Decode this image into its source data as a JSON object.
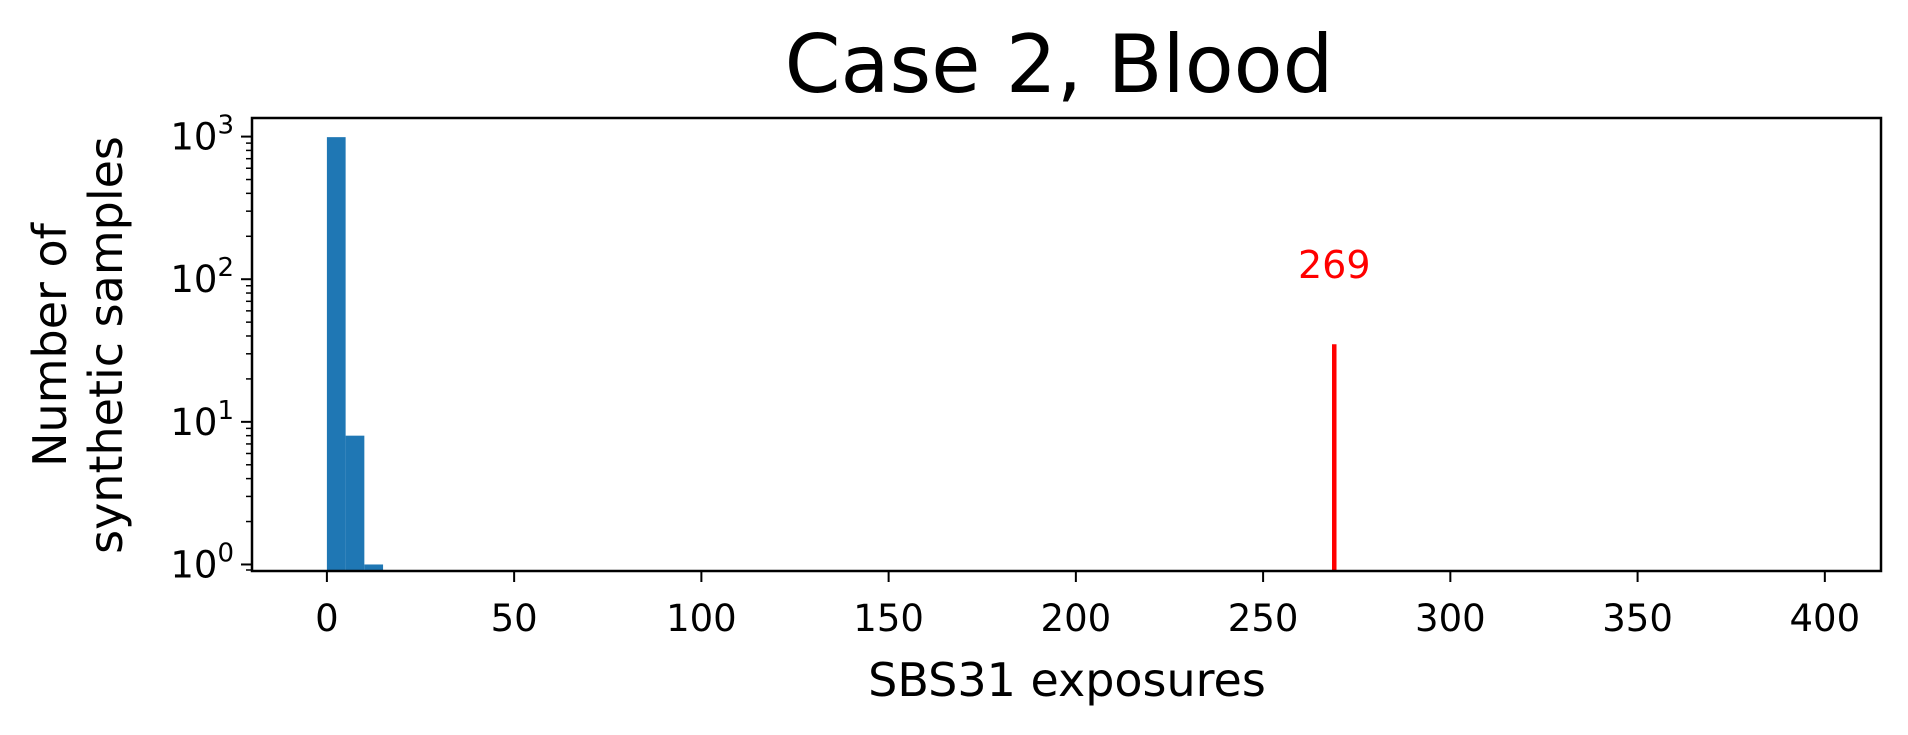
{
  "chart_data": {
    "type": "bar",
    "title": "Case 2, Blood",
    "xlabel": "SBS31 exposures",
    "ylabel_lines": [
      "Number of",
      "synthetic samples"
    ],
    "x_ticks": [
      0,
      50,
      100,
      150,
      200,
      250,
      300,
      350,
      400
    ],
    "xlim": [
      -20,
      415
    ],
    "y_scale": "log",
    "y_ticks": [
      {
        "base": "10",
        "exp": "0",
        "value": 1
      },
      {
        "base": "10",
        "exp": "1",
        "value": 10
      },
      {
        "base": "10",
        "exp": "2",
        "value": 100
      },
      {
        "base": "10",
        "exp": "3",
        "value": 1000
      }
    ],
    "ylim": [
      0.9,
      1350
    ],
    "bars": [
      {
        "x0": 0,
        "x1": 5,
        "count": 991
      },
      {
        "x0": 5,
        "x1": 10,
        "count": 8
      },
      {
        "x0": 10,
        "x1": 15,
        "count": 1
      }
    ],
    "bar_color": "#1f77b4",
    "marker": {
      "x": 269,
      "label": "269",
      "color": "#ff0000",
      "y_top": 35
    },
    "grid": false,
    "legend": "none"
  }
}
